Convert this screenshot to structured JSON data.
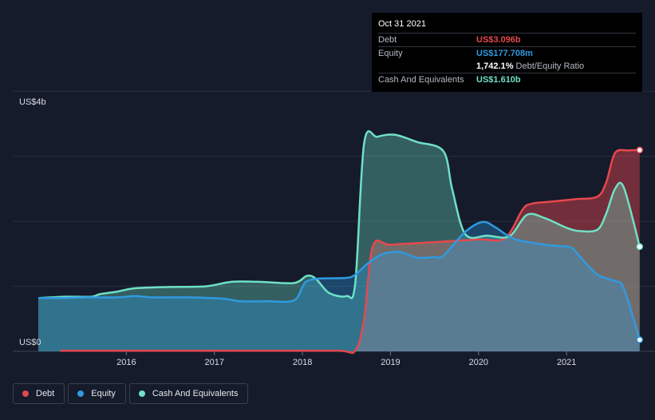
{
  "chart_data": {
    "type": "area",
    "ylabel_top": "US$4b",
    "ylabel_bottom": "US$0",
    "ylim": [
      0,
      4.2
    ],
    "xlim": [
      2015.0,
      2021.85
    ],
    "x_ticks": [
      {
        "value": 2016,
        "label": "2016"
      },
      {
        "value": 2017,
        "label": "2017"
      },
      {
        "value": 2018,
        "label": "2018"
      },
      {
        "value": 2019,
        "label": "2019"
      },
      {
        "value": 2020,
        "label": "2020"
      },
      {
        "value": 2021,
        "label": "2021"
      }
    ],
    "gridlines": [
      1,
      2,
      3,
      4
    ],
    "series": [
      {
        "name": "Debt",
        "color": "#e5484d",
        "points": [
          [
            2015.25,
            0.01
          ],
          [
            2015.75,
            0.01
          ],
          [
            2016.5,
            0.01
          ],
          [
            2017.5,
            0.01
          ],
          [
            2018.4,
            0.01
          ],
          [
            2018.6,
            0.01
          ],
          [
            2018.7,
            0.5
          ],
          [
            2018.8,
            1.62
          ],
          [
            2019.0,
            1.64
          ],
          [
            2019.5,
            1.68
          ],
          [
            2020.0,
            1.72
          ],
          [
            2020.3,
            1.74
          ],
          [
            2020.5,
            2.18
          ],
          [
            2020.6,
            2.27
          ],
          [
            2020.8,
            2.3
          ],
          [
            2021.1,
            2.34
          ],
          [
            2021.35,
            2.38
          ],
          [
            2021.45,
            2.6
          ],
          [
            2021.55,
            3.05
          ],
          [
            2021.7,
            3.09
          ],
          [
            2021.83,
            3.096
          ]
        ]
      },
      {
        "name": "Equity",
        "color": "#2f9ae0",
        "points": [
          [
            2015.0,
            0.82
          ],
          [
            2015.3,
            0.82
          ],
          [
            2015.6,
            0.83
          ],
          [
            2015.9,
            0.83
          ],
          [
            2016.1,
            0.85
          ],
          [
            2016.3,
            0.83
          ],
          [
            2016.7,
            0.83
          ],
          [
            2017.1,
            0.81
          ],
          [
            2017.3,
            0.77
          ],
          [
            2017.6,
            0.77
          ],
          [
            2017.9,
            0.78
          ],
          [
            2018.0,
            0.99
          ],
          [
            2018.05,
            1.08
          ],
          [
            2018.2,
            1.12
          ],
          [
            2018.5,
            1.13
          ],
          [
            2018.6,
            1.18
          ],
          [
            2018.75,
            1.36
          ],
          [
            2018.9,
            1.49
          ],
          [
            2019.1,
            1.53
          ],
          [
            2019.3,
            1.44
          ],
          [
            2019.5,
            1.45
          ],
          [
            2019.6,
            1.47
          ],
          [
            2019.85,
            1.84
          ],
          [
            2020.05,
            1.99
          ],
          [
            2020.2,
            1.9
          ],
          [
            2020.4,
            1.73
          ],
          [
            2020.7,
            1.65
          ],
          [
            2020.9,
            1.62
          ],
          [
            2021.05,
            1.6
          ],
          [
            2021.15,
            1.46
          ],
          [
            2021.35,
            1.18
          ],
          [
            2021.55,
            1.08
          ],
          [
            2021.65,
            0.97
          ],
          [
            2021.83,
            0.178
          ]
        ]
      },
      {
        "name": "Cash And Equivalents",
        "color": "#6fe0c6",
        "points": [
          [
            2015.0,
            0.82
          ],
          [
            2015.3,
            0.84
          ],
          [
            2015.6,
            0.84
          ],
          [
            2015.7,
            0.88
          ],
          [
            2015.9,
            0.92
          ],
          [
            2016.1,
            0.97
          ],
          [
            2016.5,
            0.99
          ],
          [
            2016.9,
            1.0
          ],
          [
            2017.2,
            1.07
          ],
          [
            2017.5,
            1.07
          ],
          [
            2017.9,
            1.05
          ],
          [
            2018.05,
            1.16
          ],
          [
            2018.15,
            1.12
          ],
          [
            2018.3,
            0.9
          ],
          [
            2018.5,
            0.85
          ],
          [
            2018.6,
            1.05
          ],
          [
            2018.7,
            3.2
          ],
          [
            2018.85,
            3.3
          ],
          [
            2019.05,
            3.33
          ],
          [
            2019.3,
            3.22
          ],
          [
            2019.6,
            3.08
          ],
          [
            2019.7,
            2.5
          ],
          [
            2019.85,
            1.8
          ],
          [
            2020.1,
            1.78
          ],
          [
            2020.35,
            1.77
          ],
          [
            2020.55,
            2.1
          ],
          [
            2020.75,
            2.05
          ],
          [
            2021.0,
            1.9
          ],
          [
            2021.15,
            1.85
          ],
          [
            2021.35,
            1.87
          ],
          [
            2021.45,
            2.12
          ],
          [
            2021.55,
            2.5
          ],
          [
            2021.65,
            2.52
          ],
          [
            2021.83,
            1.61
          ]
        ]
      }
    ]
  },
  "tooltip": {
    "date": "Oct 31 2021",
    "rows": [
      {
        "label": "Debt",
        "value": "US$3.096b",
        "color": "#e5484d"
      },
      {
        "label": "Equity",
        "value": "US$177.708m",
        "color": "#2f9ae0"
      }
    ],
    "ratio_value": "1,742.1%",
    "ratio_text": "Debt/Equity Ratio",
    "cash": {
      "label": "Cash And Equivalents",
      "value": "US$1.610b",
      "color": "#6fe0c6"
    }
  },
  "legend": [
    {
      "label": "Debt",
      "color": "#e5484d"
    },
    {
      "label": "Equity",
      "color": "#2f9ae0"
    },
    {
      "label": "Cash And Equivalents",
      "color": "#6fe0c6"
    }
  ]
}
